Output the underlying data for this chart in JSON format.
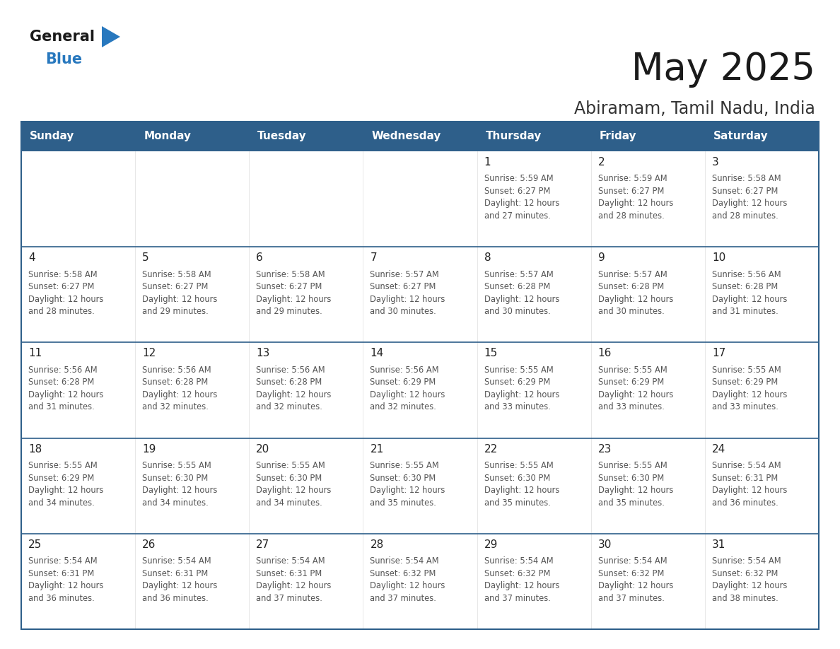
{
  "title": "May 2025",
  "subtitle": "Abiramam, Tamil Nadu, India",
  "header_bg": "#2E5F8A",
  "header_text_color": "#FFFFFF",
  "border_color": "#2E5F8A",
  "text_color": "#333333",
  "days_of_week": [
    "Sunday",
    "Monday",
    "Tuesday",
    "Wednesday",
    "Thursday",
    "Friday",
    "Saturday"
  ],
  "calendar": [
    [
      {
        "day": "",
        "sunrise": "",
        "sunset": "",
        "daylight": ""
      },
      {
        "day": "",
        "sunrise": "",
        "sunset": "",
        "daylight": ""
      },
      {
        "day": "",
        "sunrise": "",
        "sunset": "",
        "daylight": ""
      },
      {
        "day": "",
        "sunrise": "",
        "sunset": "",
        "daylight": ""
      },
      {
        "day": "1",
        "sunrise": "5:59 AM",
        "sunset": "6:27 PM",
        "daylight": "12 hours and 27 minutes."
      },
      {
        "day": "2",
        "sunrise": "5:59 AM",
        "sunset": "6:27 PM",
        "daylight": "12 hours and 28 minutes."
      },
      {
        "day": "3",
        "sunrise": "5:58 AM",
        "sunset": "6:27 PM",
        "daylight": "12 hours and 28 minutes."
      }
    ],
    [
      {
        "day": "4",
        "sunrise": "5:58 AM",
        "sunset": "6:27 PM",
        "daylight": "12 hours and 28 minutes."
      },
      {
        "day": "5",
        "sunrise": "5:58 AM",
        "sunset": "6:27 PM",
        "daylight": "12 hours and 29 minutes."
      },
      {
        "day": "6",
        "sunrise": "5:58 AM",
        "sunset": "6:27 PM",
        "daylight": "12 hours and 29 minutes."
      },
      {
        "day": "7",
        "sunrise": "5:57 AM",
        "sunset": "6:27 PM",
        "daylight": "12 hours and 30 minutes."
      },
      {
        "day": "8",
        "sunrise": "5:57 AM",
        "sunset": "6:28 PM",
        "daylight": "12 hours and 30 minutes."
      },
      {
        "day": "9",
        "sunrise": "5:57 AM",
        "sunset": "6:28 PM",
        "daylight": "12 hours and 30 minutes."
      },
      {
        "day": "10",
        "sunrise": "5:56 AM",
        "sunset": "6:28 PM",
        "daylight": "12 hours and 31 minutes."
      }
    ],
    [
      {
        "day": "11",
        "sunrise": "5:56 AM",
        "sunset": "6:28 PM",
        "daylight": "12 hours and 31 minutes."
      },
      {
        "day": "12",
        "sunrise": "5:56 AM",
        "sunset": "6:28 PM",
        "daylight": "12 hours and 32 minutes."
      },
      {
        "day": "13",
        "sunrise": "5:56 AM",
        "sunset": "6:28 PM",
        "daylight": "12 hours and 32 minutes."
      },
      {
        "day": "14",
        "sunrise": "5:56 AM",
        "sunset": "6:29 PM",
        "daylight": "12 hours and 32 minutes."
      },
      {
        "day": "15",
        "sunrise": "5:55 AM",
        "sunset": "6:29 PM",
        "daylight": "12 hours and 33 minutes."
      },
      {
        "day": "16",
        "sunrise": "5:55 AM",
        "sunset": "6:29 PM",
        "daylight": "12 hours and 33 minutes."
      },
      {
        "day": "17",
        "sunrise": "5:55 AM",
        "sunset": "6:29 PM",
        "daylight": "12 hours and 33 minutes."
      }
    ],
    [
      {
        "day": "18",
        "sunrise": "5:55 AM",
        "sunset": "6:29 PM",
        "daylight": "12 hours and 34 minutes."
      },
      {
        "day": "19",
        "sunrise": "5:55 AM",
        "sunset": "6:30 PM",
        "daylight": "12 hours and 34 minutes."
      },
      {
        "day": "20",
        "sunrise": "5:55 AM",
        "sunset": "6:30 PM",
        "daylight": "12 hours and 34 minutes."
      },
      {
        "day": "21",
        "sunrise": "5:55 AM",
        "sunset": "6:30 PM",
        "daylight": "12 hours and 35 minutes."
      },
      {
        "day": "22",
        "sunrise": "5:55 AM",
        "sunset": "6:30 PM",
        "daylight": "12 hours and 35 minutes."
      },
      {
        "day": "23",
        "sunrise": "5:55 AM",
        "sunset": "6:30 PM",
        "daylight": "12 hours and 35 minutes."
      },
      {
        "day": "24",
        "sunrise": "5:54 AM",
        "sunset": "6:31 PM",
        "daylight": "12 hours and 36 minutes."
      }
    ],
    [
      {
        "day": "25",
        "sunrise": "5:54 AM",
        "sunset": "6:31 PM",
        "daylight": "12 hours and 36 minutes."
      },
      {
        "day": "26",
        "sunrise": "5:54 AM",
        "sunset": "6:31 PM",
        "daylight": "12 hours and 36 minutes."
      },
      {
        "day": "27",
        "sunrise": "5:54 AM",
        "sunset": "6:31 PM",
        "daylight": "12 hours and 37 minutes."
      },
      {
        "day": "28",
        "sunrise": "5:54 AM",
        "sunset": "6:32 PM",
        "daylight": "12 hours and 37 minutes."
      },
      {
        "day": "29",
        "sunrise": "5:54 AM",
        "sunset": "6:32 PM",
        "daylight": "12 hours and 37 minutes."
      },
      {
        "day": "30",
        "sunrise": "5:54 AM",
        "sunset": "6:32 PM",
        "daylight": "12 hours and 37 minutes."
      },
      {
        "day": "31",
        "sunrise": "5:54 AM",
        "sunset": "6:32 PM",
        "daylight": "12 hours and 38 minutes."
      }
    ]
  ],
  "logo_text1": "General",
  "logo_text2": "Blue",
  "logo_triangle_color": "#2878BE",
  "fig_width": 11.88,
  "fig_height": 9.18,
  "dpi": 100
}
